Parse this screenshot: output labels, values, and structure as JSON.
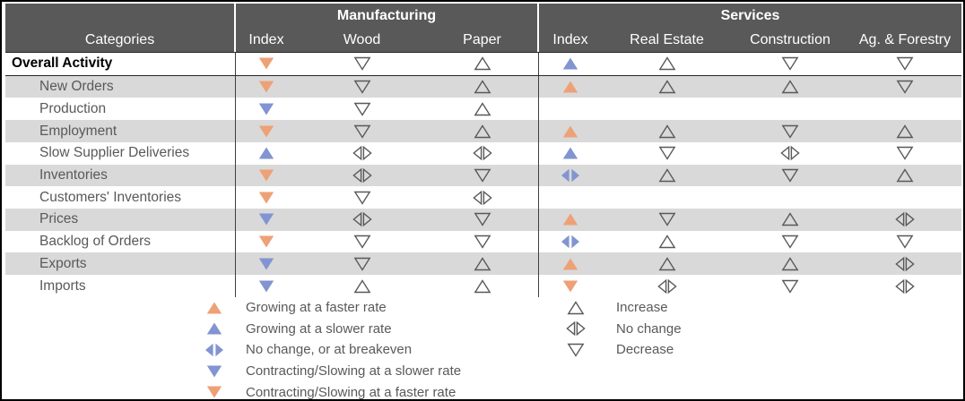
{
  "table": {
    "corner_header": "Categories",
    "groups": [
      {
        "label": "Manufacturing",
        "columns": [
          "Index",
          "Wood",
          "Paper"
        ]
      },
      {
        "label": "Services",
        "columns": [
          "Index",
          "Real Estate",
          "Construction",
          "Ag. & Forestry"
        ]
      }
    ],
    "rows": [
      {
        "category": "Overall Activity",
        "bold": true,
        "cells": [
          "cf",
          "dec",
          "inc",
          "gs",
          "inc",
          "dec",
          "dec"
        ]
      },
      {
        "category": "New Orders",
        "cells": [
          "cf",
          "dec",
          "inc",
          "gf",
          "inc",
          "inc",
          "dec"
        ]
      },
      {
        "category": "Production",
        "cells": [
          "cs",
          "dec",
          "inc",
          "",
          "",
          "",
          ""
        ]
      },
      {
        "category": "Employment",
        "cells": [
          "cf",
          "dec",
          "inc",
          "gf",
          "inc",
          "dec",
          "inc"
        ]
      },
      {
        "category": "Slow Supplier Deliveries",
        "cells": [
          "gs",
          "nc",
          "nc",
          "gs",
          "dec",
          "nc",
          "dec"
        ]
      },
      {
        "category": "Inventories",
        "cells": [
          "cf",
          "nc",
          "dec",
          "nb",
          "inc",
          "dec",
          "inc"
        ]
      },
      {
        "category": "Customers' Inventories",
        "cells": [
          "cf",
          "dec",
          "nc",
          "",
          "",
          "",
          ""
        ]
      },
      {
        "category": "Prices",
        "cells": [
          "cs",
          "nc",
          "dec",
          "gf",
          "dec",
          "inc",
          "nc"
        ]
      },
      {
        "category": "Backlog of Orders",
        "cells": [
          "cf",
          "dec",
          "dec",
          "nb",
          "inc",
          "dec",
          "dec"
        ]
      },
      {
        "category": "Exports",
        "cells": [
          "cs",
          "dec",
          "inc",
          "gf",
          "inc",
          "inc",
          "nc"
        ]
      },
      {
        "category": "Imports",
        "cells": [
          "cs",
          "inc",
          "inc",
          "cf",
          "nc",
          "dec",
          "nc"
        ]
      }
    ]
  },
  "legend": {
    "filled": [
      {
        "symbol": "gf",
        "label": "Growing at a faster rate"
      },
      {
        "symbol": "gs",
        "label": "Growing at a slower rate"
      },
      {
        "symbol": "nb",
        "label": "No change, or at breakeven"
      },
      {
        "symbol": "cs",
        "label": "Contracting/Slowing at a slower rate"
      },
      {
        "symbol": "cf",
        "label": "Contracting/Slowing at a faster rate"
      }
    ],
    "hollow": [
      {
        "symbol": "inc",
        "label": "Increase"
      },
      {
        "symbol": "nc",
        "label": "No change"
      },
      {
        "symbol": "dec",
        "label": "Decrease"
      }
    ]
  },
  "symbol_meanings": {
    "gf": "growing-faster",
    "gs": "growing-slower",
    "nb": "no-change-breakeven",
    "cs": "contracting-slower",
    "cf": "contracting-faster",
    "inc": "increase",
    "nc": "no-change",
    "dec": "decrease"
  },
  "colors": {
    "orange": "#EEA176",
    "blue": "#8294D1",
    "outline": "#595959",
    "header_bg": "#595959",
    "stripe": "#D9D9D9",
    "text": "#595959"
  },
  "chart_data": {
    "type": "table",
    "title": "",
    "column_groups": [
      "Manufacturing",
      "Services"
    ],
    "columns": [
      "Categories",
      "Mfg Index",
      "Wood",
      "Paper",
      "Svc Index",
      "Real Estate",
      "Construction",
      "Ag. & Forestry"
    ],
    "legend_codes": {
      "gf": "Growing at a faster rate",
      "gs": "Growing at a slower rate",
      "nb": "No change, or at breakeven",
      "cs": "Contracting/Slowing at a slower rate",
      "cf": "Contracting/Slowing at a faster rate",
      "inc": "Increase",
      "nc": "No change",
      "dec": "Decrease"
    },
    "rows": [
      [
        "Overall Activity",
        "cf",
        "dec",
        "inc",
        "gs",
        "inc",
        "dec",
        "dec"
      ],
      [
        "New Orders",
        "cf",
        "dec",
        "inc",
        "gf",
        "inc",
        "inc",
        "dec"
      ],
      [
        "Production",
        "cs",
        "dec",
        "inc",
        "",
        "",
        "",
        ""
      ],
      [
        "Employment",
        "cf",
        "dec",
        "inc",
        "gf",
        "inc",
        "dec",
        "inc"
      ],
      [
        "Slow Supplier Deliveries",
        "gs",
        "nc",
        "nc",
        "gs",
        "dec",
        "nc",
        "dec"
      ],
      [
        "Inventories",
        "cf",
        "nc",
        "dec",
        "nb",
        "inc",
        "dec",
        "inc"
      ],
      [
        "Customers' Inventories",
        "cf",
        "dec",
        "nc",
        "",
        "",
        "",
        ""
      ],
      [
        "Prices",
        "cs",
        "nc",
        "dec",
        "gf",
        "dec",
        "inc",
        "nc"
      ],
      [
        "Backlog of Orders",
        "cf",
        "dec",
        "dec",
        "nb",
        "inc",
        "dec",
        "dec"
      ],
      [
        "Exports",
        "cs",
        "dec",
        "inc",
        "gf",
        "inc",
        "inc",
        "nc"
      ],
      [
        "Imports",
        "cs",
        "inc",
        "inc",
        "cf",
        "nc",
        "dec",
        "nc"
      ]
    ]
  }
}
